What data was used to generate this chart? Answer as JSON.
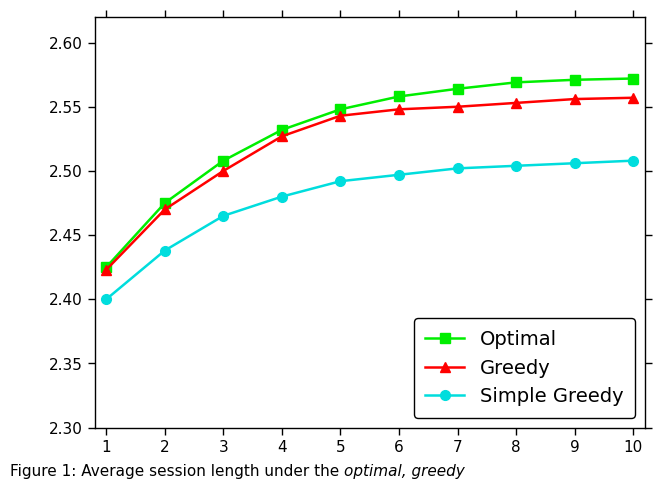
{
  "x": [
    1,
    2,
    3,
    4,
    5,
    6,
    7,
    8,
    9,
    10
  ],
  "optimal": [
    2.425,
    2.475,
    2.508,
    2.532,
    2.548,
    2.558,
    2.564,
    2.569,
    2.571,
    2.572
  ],
  "greedy": [
    2.423,
    2.47,
    2.5,
    2.527,
    2.543,
    2.548,
    2.55,
    2.553,
    2.556,
    2.557
  ],
  "simple_greedy": [
    2.4,
    2.438,
    2.465,
    2.48,
    2.492,
    2.497,
    2.502,
    2.504,
    2.506,
    2.508
  ],
  "optimal_color": "#00ee00",
  "greedy_color": "#ff0000",
  "simple_greedy_color": "#00dddd",
  "ylim": [
    2.3,
    2.62
  ],
  "xlim": [
    0.8,
    10.2
  ],
  "yticks": [
    2.3,
    2.35,
    2.4,
    2.45,
    2.5,
    2.55,
    2.6
  ],
  "xticks": [
    1,
    2,
    3,
    4,
    5,
    6,
    7,
    8,
    9,
    10
  ],
  "caption_prefix": "Figure 1: Average session length under the ",
  "caption_italic": "optimal, greedy",
  "legend_loc": "lower right",
  "linewidth": 1.8,
  "markersize": 7
}
